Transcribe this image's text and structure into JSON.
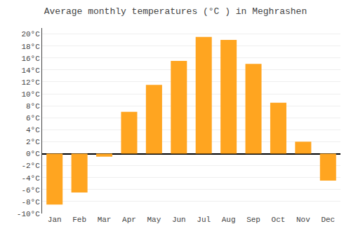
{
  "chart_data": {
    "type": "bar",
    "title": "Average monthly temperatures (°C ) in Meghrashen",
    "categories": [
      "Jan",
      "Feb",
      "Mar",
      "Apr",
      "May",
      "Jun",
      "Jul",
      "Aug",
      "Sep",
      "Oct",
      "Nov",
      "Dec"
    ],
    "values": [
      -8.5,
      -6.5,
      -0.5,
      7.0,
      11.5,
      15.5,
      19.5,
      19.0,
      15.0,
      8.5,
      2.0,
      -4.5
    ],
    "color": "#FFA520",
    "ylim": [
      -10,
      21
    ],
    "yticks": [
      {
        "value": -10,
        "label": "-10°C"
      },
      {
        "value": -8,
        "label": "-8°C"
      },
      {
        "value": -6,
        "label": "-6°C"
      },
      {
        "value": -4,
        "label": "-4°C"
      },
      {
        "value": -2,
        "label": "-2°C"
      },
      {
        "value": 0,
        "label": "0°C"
      },
      {
        "value": 2,
        "label": "2°C"
      },
      {
        "value": 4,
        "label": "4°C"
      },
      {
        "value": 6,
        "label": "6°C"
      },
      {
        "value": 8,
        "label": "8°C"
      },
      {
        "value": 10,
        "label": "10°C"
      },
      {
        "value": 12,
        "label": "12°C"
      },
      {
        "value": 14,
        "label": "14°C"
      },
      {
        "value": 16,
        "label": "16°C"
      },
      {
        "value": 18,
        "label": "18°C"
      },
      {
        "value": 20,
        "label": "20°C"
      }
    ],
    "grid": true
  }
}
